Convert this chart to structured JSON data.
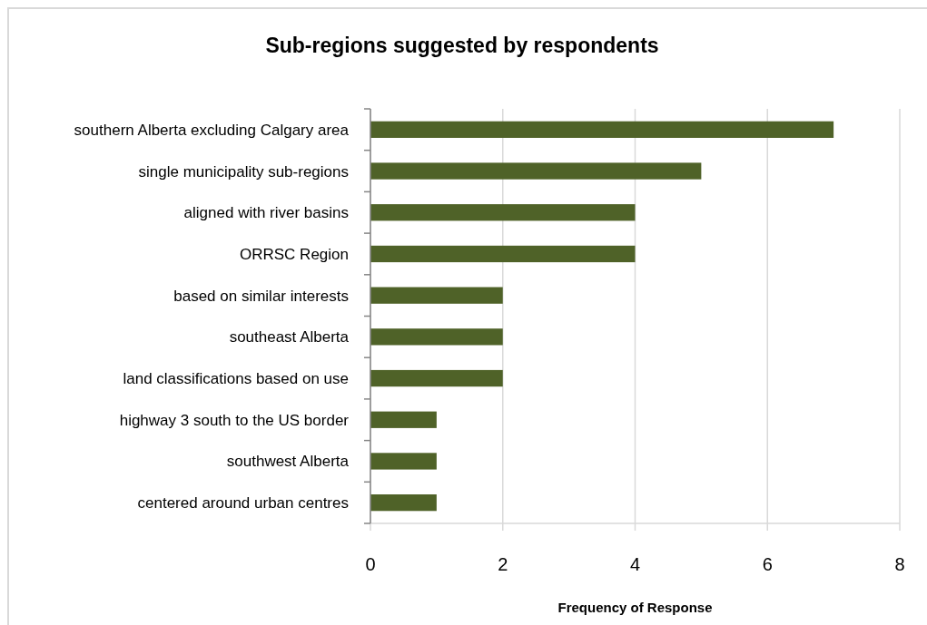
{
  "chart_data": {
    "type": "bar",
    "orientation": "horizontal",
    "title": "Sub-regions suggested by respondents",
    "xlabel": "Frequency of Response",
    "categories": [
      "southern Alberta excluding Calgary area",
      "single municipality sub-regions",
      "aligned with river basins",
      "ORRSC Region",
      "based on similar interests",
      "southeast Alberta",
      "land classifications based on use",
      "highway 3 south to the US border",
      "southwest Alberta",
      "centered around urban centres"
    ],
    "values": [
      7,
      5,
      4,
      4,
      2,
      2,
      2,
      1,
      1,
      1
    ],
    "color": "#4f6228",
    "xlim": [
      0,
      8
    ],
    "xticks": [
      0,
      2,
      4,
      6,
      8
    ],
    "grid": "x"
  }
}
